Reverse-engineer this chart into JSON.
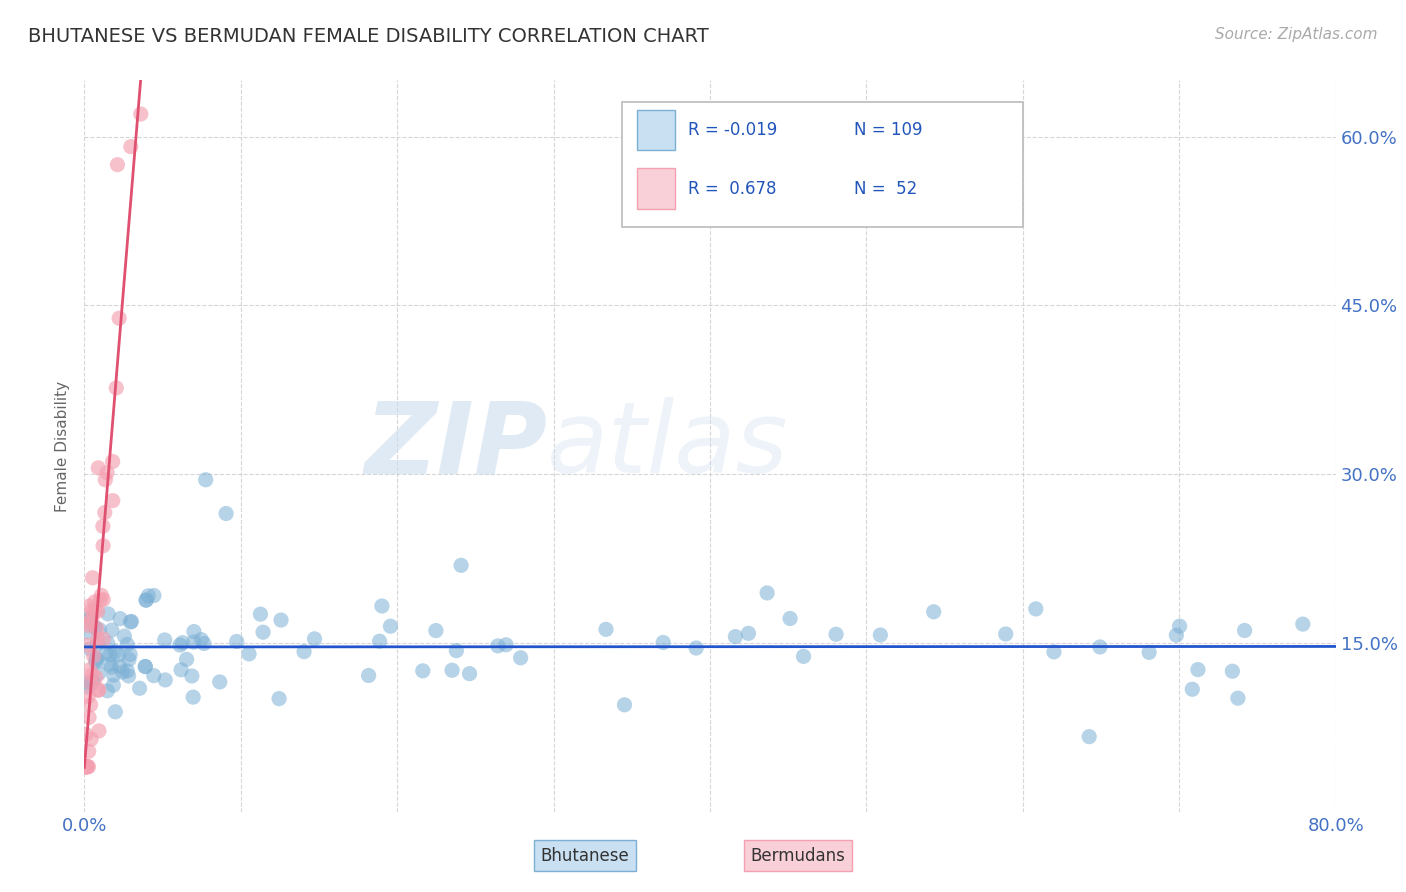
{
  "title": "BHUTANESE VS BERMUDAN FEMALE DISABILITY CORRELATION CHART",
  "source_text": "Source: ZipAtlas.com",
  "ylabel": "Female Disability",
  "xlim": [
    0.0,
    0.8
  ],
  "ylim": [
    0.0,
    0.65
  ],
  "xticks": [
    0.0,
    0.1,
    0.2,
    0.3,
    0.4,
    0.5,
    0.6,
    0.7,
    0.8
  ],
  "xticklabels": [
    "0.0%",
    "",
    "",
    "",
    "",
    "",
    "",
    "",
    "80.0%"
  ],
  "yticks": [
    0.15,
    0.3,
    0.45,
    0.6
  ],
  "yticklabels": [
    "15.0%",
    "30.0%",
    "45.0%",
    "60.0%"
  ],
  "blue_color": "#7bafd4",
  "blue_edge": "#7bafd4",
  "pink_color": "#f4a0b0",
  "pink_edge": "#f4a0b0",
  "trend_blue": "#2255cc",
  "trend_pink": "#e05070",
  "legend_R1": "-0.019",
  "legend_N1": "109",
  "legend_R2": "0.678",
  "legend_N2": "52",
  "legend_label1": "Bhutanese",
  "legend_label2": "Bermudans",
  "watermark_zip": "ZIP",
  "watermark_atlas": "atlas",
  "grid_color": "#cccccc",
  "background_color": "#ffffff",
  "axis_label_color": "#666666",
  "tick_label_color": "#4472c4",
  "title_color": "#333333",
  "source_color": "#aaaaaa",
  "legend_text_color": "#1a1a1a",
  "legend_val_color": "#2255bb"
}
